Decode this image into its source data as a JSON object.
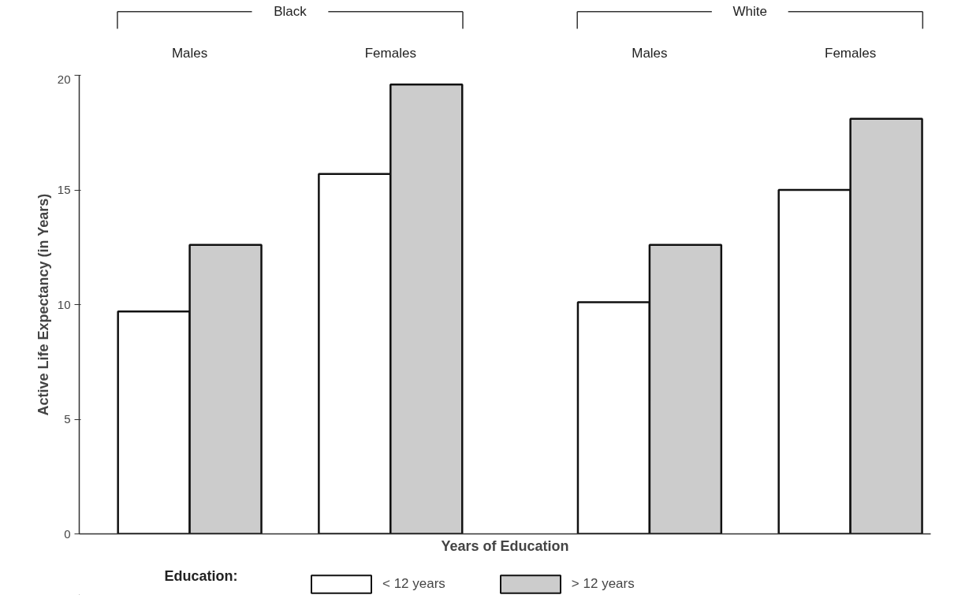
{
  "chart_data": {
    "type": "bar",
    "xlabel": "Years of Education",
    "ylabel": "Active Life Expectancy (in Years)",
    "categories": [
      "Males",
      "Females",
      "Males",
      "Females"
    ],
    "annotations": [
      "Black",
      "White"
    ],
    "legend_title": "Education:",
    "series": [
      {
        "name": "< 12 years",
        "color": "#ffffff",
        "values": [
          9.7,
          15.7,
          10.1,
          15.0
        ]
      },
      {
        "name": "> 12 years",
        "color": "#cccccc",
        "values": [
          12.6,
          19.6,
          12.6,
          18.1
        ]
      }
    ],
    "ylim": [
      0,
      20
    ],
    "yticks": [
      0,
      5,
      10,
      15,
      20
    ],
    "grid": false,
    "legend": "bottom"
  }
}
